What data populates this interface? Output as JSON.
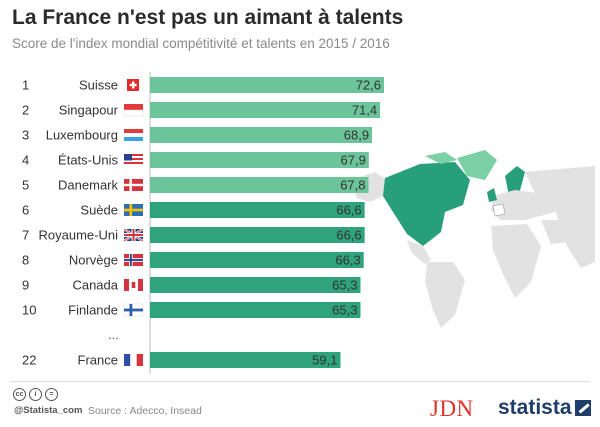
{
  "title": "La France n'est pas un aimant à talents",
  "subtitle": "Score de l'index mondial compétitivité et talents en 2015 / 2016",
  "chart_data": {
    "type": "bar",
    "orientation": "horizontal",
    "categories": [
      "Suisse",
      "Singapour",
      "Luxembourg",
      "États-Unis",
      "Danemark",
      "Suède",
      "Royaume-Uni",
      "Norvège",
      "Canada",
      "Finlande",
      "France"
    ],
    "ranks": [
      "1",
      "2",
      "3",
      "4",
      "5",
      "6",
      "7",
      "8",
      "9",
      "10",
      "22"
    ],
    "values": [
      72.6,
      71.4,
      68.9,
      67.9,
      67.8,
      66.6,
      66.6,
      66.3,
      65.3,
      65.3,
      59.1
    ],
    "value_labels": [
      "72,6",
      "71,4",
      "68,9",
      "67,9",
      "67,8",
      "66,6",
      "66,6",
      "66,3",
      "65,3",
      "65,3",
      "59,1"
    ],
    "flags": [
      "ch",
      "sg",
      "lu",
      "us",
      "dk",
      "se",
      "gb",
      "no",
      "ca",
      "fi",
      "fr"
    ],
    "gap_marker": "...",
    "colors": {
      "top_bars": "#6cc49a",
      "lower_bars": "#2fa37b",
      "map_land": "#e2e2e2",
      "map_highlight": "#27a079",
      "map_light": "#7cd0a6"
    },
    "xlim": [
      0,
      72.6
    ],
    "grid": false,
    "legend": "none"
  },
  "footer": {
    "cc_icons": [
      "cc",
      "i",
      "="
    ],
    "handle": "@Statista_com",
    "source": "Source : Adecco, Insead",
    "partner_logo": "JDN",
    "brand_logo": "statista"
  }
}
